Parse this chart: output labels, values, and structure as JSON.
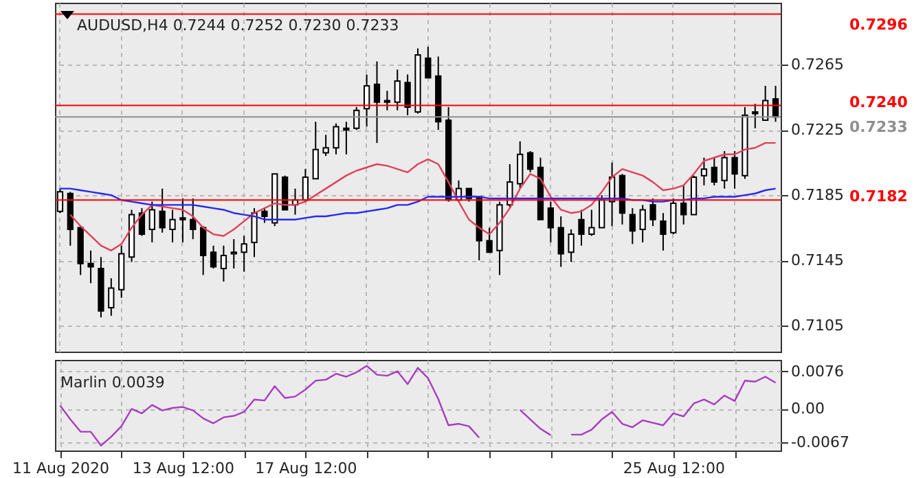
{
  "chart_data": [
    {
      "type": "candlestick",
      "title": "AUDUSD,H4 0.7244 0.7252 0.7230 0.7233",
      "categories": [
        null,
        null,
        null,
        null,
        null,
        null,
        null,
        null,
        null,
        null,
        null,
        null,
        null,
        null,
        null,
        null,
        null,
        null,
        null,
        null,
        null,
        null,
        null,
        null,
        null,
        null,
        null,
        null,
        null,
        null,
        null,
        null,
        null,
        null,
        null,
        null,
        null,
        null,
        null,
        null,
        null,
        null,
        null,
        null,
        null,
        null,
        null,
        null,
        null,
        null,
        null,
        null,
        null,
        null,
        null,
        null,
        null,
        null,
        null,
        null,
        null,
        null,
        null,
        null,
        null,
        null,
        null,
        null,
        null,
        null,
        null
      ],
      "ohlc": [
        [
          0.7175,
          0.7189,
          0.7174,
          0.7187
        ],
        [
          0.7186,
          0.7187,
          0.7154,
          0.7164
        ],
        [
          0.7165,
          0.7166,
          0.7136,
          0.7143
        ],
        [
          0.7143,
          0.7151,
          0.7131,
          0.7141
        ],
        [
          0.714,
          0.7147,
          0.711,
          0.7114
        ],
        [
          0.7116,
          0.7134,
          0.7111,
          0.7128
        ],
        [
          0.7127,
          0.7154,
          0.7122,
          0.7149
        ],
        [
          0.7147,
          0.7176,
          0.7144,
          0.7173
        ],
        [
          0.7174,
          0.7177,
          0.716,
          0.7161
        ],
        [
          0.7164,
          0.7181,
          0.7156,
          0.7176
        ],
        [
          0.7175,
          0.7189,
          0.7162,
          0.7165
        ],
        [
          0.7164,
          0.7176,
          0.7156,
          0.717
        ],
        [
          0.7171,
          0.7183,
          0.7156,
          0.717
        ],
        [
          0.717,
          0.7183,
          0.7158,
          0.7164
        ],
        [
          0.7165,
          0.7166,
          0.7136,
          0.7148
        ],
        [
          0.715,
          0.7154,
          0.714,
          0.7141
        ],
        [
          0.714,
          0.7154,
          0.7132,
          0.7148
        ],
        [
          0.7149,
          0.7158,
          0.714,
          0.715
        ],
        [
          0.715,
          0.716,
          0.7138,
          0.7155
        ],
        [
          0.7156,
          0.7177,
          0.7147,
          0.7174
        ],
        [
          0.7175,
          0.7177,
          0.7168,
          0.7172
        ],
        [
          0.7168,
          0.7198,
          0.7166,
          0.7198
        ],
        [
          0.7196,
          0.7197,
          0.7176,
          0.7176
        ],
        [
          0.7179,
          0.7189,
          0.7173,
          0.7182
        ],
        [
          0.7182,
          0.7201,
          0.7181,
          0.7196
        ],
        [
          0.7195,
          0.723,
          0.7195,
          0.7213
        ],
        [
          0.7211,
          0.7222,
          0.7209,
          0.7214
        ],
        [
          0.7214,
          0.7229,
          0.721,
          0.7227
        ],
        [
          0.7226,
          0.723,
          0.721,
          0.7225
        ],
        [
          0.7226,
          0.7239,
          0.7225,
          0.7237
        ],
        [
          0.7238,
          0.7259,
          0.7227,
          0.7252
        ],
        [
          0.7253,
          0.7267,
          0.7217,
          0.7242
        ],
        [
          0.7243,
          0.7249,
          0.7237,
          0.7242
        ],
        [
          0.7242,
          0.7262,
          0.7237,
          0.7255
        ],
        [
          0.7254,
          0.7259,
          0.7234,
          0.7239
        ],
        [
          0.7236,
          0.7275,
          0.7235,
          0.7271
        ],
        [
          0.7269,
          0.7276,
          0.7257,
          0.7257
        ],
        [
          0.7258,
          0.727,
          0.7225,
          0.723
        ],
        [
          0.7231,
          0.7239,
          0.7181,
          0.7182
        ],
        [
          0.7182,
          0.7194,
          0.7181,
          0.7189
        ],
        [
          0.7189,
          0.7189,
          0.7181,
          0.7183
        ],
        [
          0.7184,
          0.7184,
          0.7145,
          0.7157
        ],
        [
          0.7157,
          0.7165,
          0.715,
          0.715
        ],
        [
          0.7151,
          0.7181,
          0.7136,
          0.7179
        ],
        [
          0.7179,
          0.7204,
          0.7177,
          0.7193
        ],
        [
          0.7192,
          0.7218,
          0.7189,
          0.721
        ],
        [
          0.7211,
          0.7212,
          0.7199,
          0.7201
        ],
        [
          0.7202,
          0.7208,
          0.717,
          0.717
        ],
        [
          0.7177,
          0.7181,
          0.7156,
          0.7165
        ],
        [
          0.7165,
          0.7172,
          0.7141,
          0.7149
        ],
        [
          0.715,
          0.7164,
          0.7144,
          0.7161
        ],
        [
          0.717,
          0.7176,
          0.7154,
          0.7161
        ],
        [
          0.7161,
          0.7176,
          0.716,
          0.7165
        ],
        [
          0.7165,
          0.7185,
          0.7165,
          0.7182
        ],
        [
          0.7181,
          0.7205,
          0.7166,
          0.7196
        ],
        [
          0.7197,
          0.7198,
          0.7167,
          0.7174
        ],
        [
          0.7173,
          0.7177,
          0.7155,
          0.7163
        ],
        [
          0.7164,
          0.7179,
          0.7156,
          0.7176
        ],
        [
          0.7179,
          0.7183,
          0.7166,
          0.717
        ],
        [
          0.7169,
          0.7174,
          0.7151,
          0.7161
        ],
        [
          0.7162,
          0.7183,
          0.7161,
          0.718
        ],
        [
          0.718,
          0.7191,
          0.7167,
          0.7173
        ],
        [
          0.7173,
          0.7197,
          0.7173,
          0.7196
        ],
        [
          0.7197,
          0.7208,
          0.7191,
          0.7201
        ],
        [
          0.7202,
          0.7208,
          0.7191,
          0.7193
        ],
        [
          0.7194,
          0.7212,
          0.7189,
          0.7208
        ],
        [
          0.7208,
          0.7212,
          0.7189,
          0.7198
        ],
        [
          0.7197,
          0.7239,
          0.7195,
          0.7234
        ],
        [
          0.7236,
          0.7241,
          0.7226,
          0.7235
        ],
        [
          0.7231,
          0.7252,
          0.7231,
          0.7243
        ],
        [
          0.7244,
          0.7252,
          0.723,
          0.7233
        ]
      ],
      "series": [
        {
          "type": "line",
          "color": "#e0405a",
          "values": [
            null,
            0.7173,
            0.7166,
            0.716,
            0.7154,
            0.7151,
            0.7155,
            0.7165,
            0.7173,
            0.7179,
            0.7178,
            0.7177,
            0.7176,
            0.7172,
            0.7165,
            0.7161,
            0.716,
            0.7164,
            0.7169,
            0.7174,
            0.7177,
            0.718,
            0.7179,
            0.7179,
            0.7181,
            0.7185,
            0.7189,
            0.7193,
            0.7197,
            0.72,
            0.7202,
            0.7204,
            0.7203,
            0.7201,
            0.7199,
            0.7204,
            0.7207,
            0.7204,
            0.7193,
            0.7181,
            0.717,
            0.7165,
            0.7161,
            0.7168,
            0.7177,
            0.7189,
            0.7198,
            0.7195,
            0.7184,
            0.7176,
            0.7174,
            0.7175,
            0.7179,
            0.7187,
            0.7196,
            0.7201,
            0.7199,
            0.7197,
            0.7193,
            0.7188,
            0.7189,
            0.7191,
            0.7198,
            0.7206,
            0.7208,
            0.721,
            0.721,
            0.7213,
            0.7214,
            0.7217,
            0.7217
          ]
        },
        {
          "type": "line",
          "color": "#2828f0",
          "values": [
            0.7189,
            0.7189,
            0.7188,
            0.7187,
            0.7186,
            0.7185,
            0.7182,
            0.7181,
            0.718,
            0.7179,
            0.7179,
            0.7179,
            0.7179,
            0.7179,
            0.7178,
            0.7177,
            0.7176,
            0.7174,
            0.7173,
            0.7172,
            0.717,
            0.717,
            0.717,
            0.717,
            0.7171,
            0.7172,
            0.7172,
            0.7173,
            0.7174,
            0.7174,
            0.7175,
            0.7176,
            0.7177,
            0.7179,
            0.7179,
            0.7181,
            0.7184,
            0.7184,
            0.7184,
            0.7184,
            0.7184,
            0.7184,
            0.7183,
            0.7183,
            0.7183,
            0.7183,
            0.7183,
            0.7183,
            0.7183,
            0.7183,
            0.7183,
            0.7183,
            0.7183,
            0.7183,
            0.7183,
            0.7183,
            0.7182,
            0.7182,
            0.7181,
            0.7181,
            0.7182,
            0.7182,
            0.7183,
            0.7183,
            0.7184,
            0.7184,
            0.7184,
            0.7185,
            0.7186,
            0.7188,
            0.7189
          ]
        }
      ],
      "ylim": [
        0.7089,
        0.7303
      ],
      "yticks": [
        0.7265,
        0.7225,
        0.7185,
        0.7145,
        0.7105
      ],
      "grid": true,
      "tick_labels": "y",
      "ref_lines": [
        {
          "axis": "y",
          "value": 0.7296,
          "label": "0.7296",
          "color": "#ff0000"
        },
        {
          "axis": "y",
          "value": 0.724,
          "label": "0.7240",
          "color": "#ff0000"
        },
        {
          "axis": "y",
          "value": 0.7233,
          "label": "0.7233",
          "color": "#909090"
        },
        {
          "axis": "y",
          "value": 0.7182,
          "label": "0.7182",
          "color": "#ff0000"
        }
      ]
    },
    {
      "type": "line",
      "title": "Marlin 0.0039",
      "categories": [
        "11 Aug 2020",
        null,
        null,
        null,
        null,
        null,
        null,
        null,
        null,
        null,
        null,
        null,
        "13 Aug 12:00",
        null,
        null,
        null,
        null,
        null,
        null,
        null,
        null,
        null,
        null,
        null,
        "17 Aug 12:00",
        null,
        null,
        null,
        null,
        null,
        null,
        null,
        null,
        null,
        null,
        null,
        null,
        null,
        null,
        null,
        null,
        null,
        null,
        null,
        null,
        null,
        null,
        null,
        null,
        null,
        null,
        null,
        null,
        null,
        null,
        null,
        null,
        null,
        null,
        null,
        "25 Aug 12:00",
        null,
        null,
        null,
        null,
        null,
        null,
        null,
        null,
        null,
        null
      ],
      "series": [
        {
          "color": "#a83cc0",
          "values": [
            0.0007,
            -0.0021,
            -0.0046,
            -0.0046,
            -0.0074,
            -0.0056,
            -0.0035,
            0.0,
            -0.0009,
            0.0008,
            -0.0003,
            0.0002,
            0.0004,
            -0.0003,
            -0.0019,
            -0.0029,
            -0.0017,
            -0.0014,
            -0.0006,
            0.0019,
            0.0017,
            0.0046,
            0.0022,
            0.0025,
            0.0039,
            0.0057,
            0.0059,
            0.0071,
            0.0065,
            0.0074,
            0.0087,
            0.0069,
            0.0067,
            0.0076,
            0.005,
            0.0083,
            0.0062,
            0.002,
            -0.0033,
            -0.003,
            -0.0035,
            -0.0058,
            null,
            null,
            null,
            -0.0002,
            -0.0021,
            -0.004,
            -0.0053,
            null,
            -0.0052,
            -0.0052,
            -0.0042,
            -0.0021,
            -0.0006,
            -0.003,
            -0.0037,
            -0.0023,
            -0.0028,
            -0.0033,
            -0.0009,
            -0.0015,
            0.0011,
            0.0019,
            0.0009,
            0.0027,
            0.0016,
            0.0057,
            0.0055,
            0.0065,
            0.0053
          ]
        }
      ],
      "ylim": [
        -0.0084,
        0.0099
      ],
      "yticks": [
        0.0076,
        {
          "value": 0,
          "label": "0.00"
        },
        -0.0067
      ],
      "grid": true
    }
  ]
}
